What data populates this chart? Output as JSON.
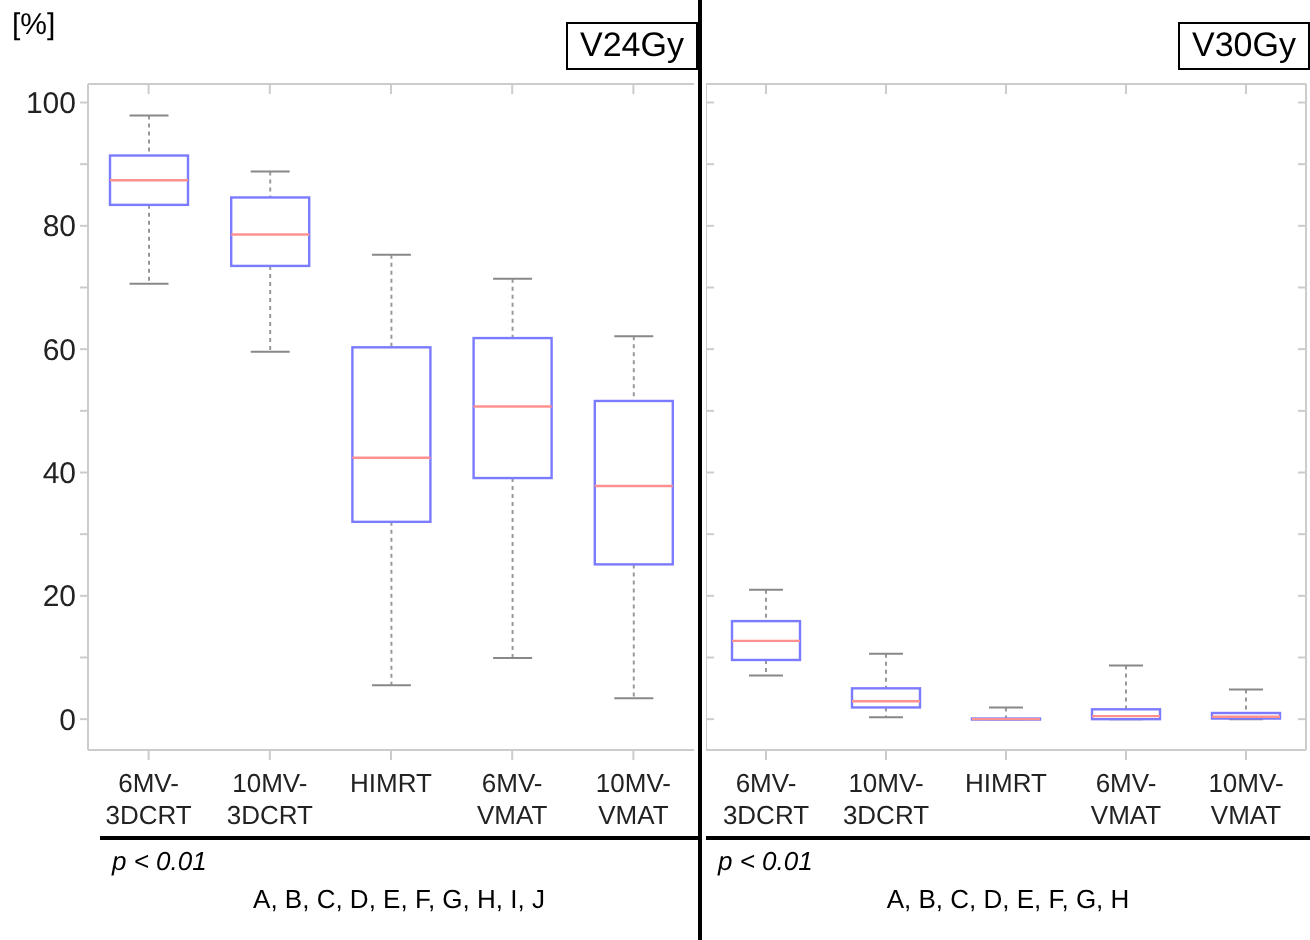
{
  "chart_data": [
    {
      "type": "box",
      "title": "V24Gy",
      "ylabel": "[%]",
      "categories": [
        "6MV-3DCRT",
        "10MV-3DCRT",
        "HIMRT",
        "6MV-VMAT",
        "10MV-VMAT"
      ],
      "ylim": [
        -5,
        103
      ],
      "yticks": [
        0,
        {
          "value": 10,
          "label": null
        },
        20,
        {
          "value": 30,
          "label": null
        },
        40,
        {
          "value": 50,
          "label": null
        },
        60,
        {
          "value": 70,
          "label": null
        },
        80,
        {
          "value": 90,
          "label": null
        },
        100
      ],
      "series": [
        {
          "color": "#7b7bff",
          "boxes": [
            {
              "low": 70.6,
              "q1": 83.4,
              "median": 87.4,
              "q3": 91.4,
              "high": 97.9
            },
            {
              "low": 59.6,
              "q1": 73.5,
              "median": 78.6,
              "q3": 84.6,
              "high": 88.8
            },
            {
              "low": 5.5,
              "q1": 32.0,
              "median": 42.4,
              "q3": 60.3,
              "high": 75.3
            },
            {
              "low": 9.9,
              "q1": 39.1,
              "median": 50.7,
              "q3": 61.8,
              "high": 71.4
            },
            {
              "low": 3.4,
              "q1": 25.1,
              "median": 37.8,
              "q3": 51.6,
              "high": 62.1
            }
          ]
        }
      ],
      "annotations": [
        "p < 0.01",
        "A, B, C, D, E, F, G, H, I, J"
      ]
    },
    {
      "type": "box",
      "title": "V30Gy",
      "tick_labels": "x",
      "categories": [
        "6MV-3DCRT",
        "10MV-3DCRT",
        "HIMRT",
        "6MV-VMAT",
        "10MV-VMAT"
      ],
      "ylim": [
        -5,
        103
      ],
      "yticks": [
        0,
        {
          "value": 10,
          "label": null
        },
        20,
        {
          "value": 30,
          "label": null
        },
        40,
        {
          "value": 50,
          "label": null
        },
        60,
        {
          "value": 70,
          "label": null
        },
        80,
        {
          "value": 90,
          "label": null
        },
        100
      ],
      "series": [
        {
          "color": "#7b7bff",
          "boxes": [
            {
              "low": 7.1,
              "q1": 9.6,
              "median": 12.7,
              "q3": 15.9,
              "high": 21.0
            },
            {
              "low": 0.3,
              "q1": 1.9,
              "median": 2.9,
              "q3": 5.0,
              "high": 10.6
            },
            {
              "low": 0,
              "q1": 0,
              "median": 0,
              "q3": 0.1,
              "high": 1.9
            },
            {
              "low": 0,
              "q1": 0,
              "median": 0.5,
              "q3": 1.6,
              "high": 8.7
            },
            {
              "low": 0,
              "q1": 0.1,
              "median": 0.4,
              "q3": 1.0,
              "high": 4.8
            }
          ]
        }
      ],
      "annotations": [
        "p < 0.01",
        "A, B, C, D, E, F, G, H"
      ]
    }
  ]
}
